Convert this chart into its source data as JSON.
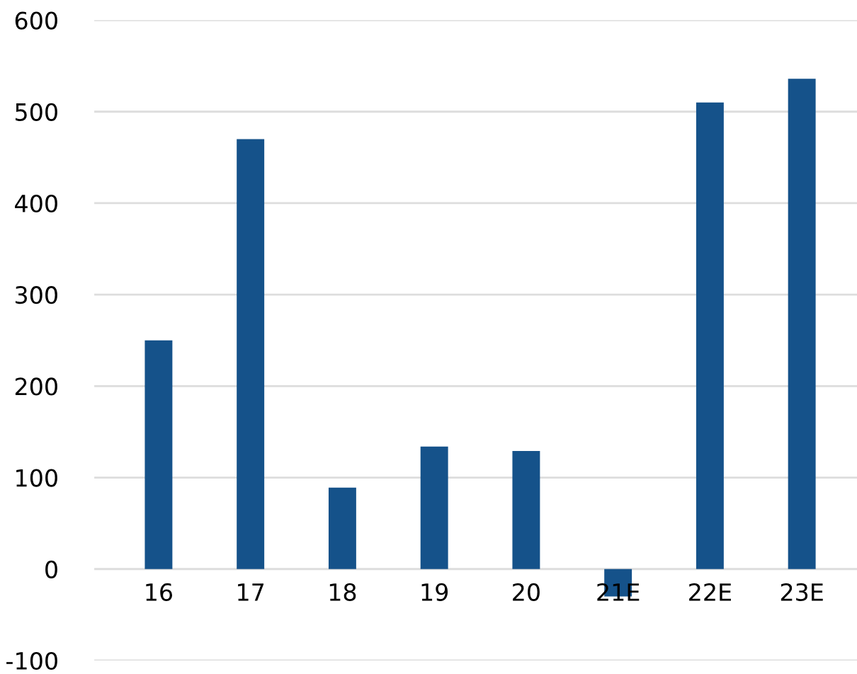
{
  "chart_data": {
    "type": "bar",
    "categories": [
      "16",
      "17",
      "18",
      "19",
      "20",
      "21E",
      "22E",
      "23E"
    ],
    "values": [
      250,
      470,
      89,
      134,
      129,
      -30,
      510,
      536
    ],
    "color": "#15528a",
    "ylim": [
      -100,
      600
    ],
    "yticks": [
      -100,
      0,
      100,
      200,
      300,
      400,
      500,
      600
    ],
    "grid": "y"
  }
}
